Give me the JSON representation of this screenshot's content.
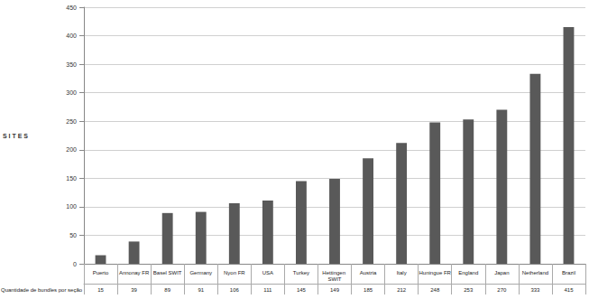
{
  "chart_data": {
    "type": "bar",
    "y_label": "S I T E S",
    "x_label": "Quantidade de bundles por seção",
    "categories": [
      "Puerto",
      "Annonay FR",
      "Basel SWIT",
      "Germany",
      "Nyon FR",
      "USA",
      "Turkey",
      "Hettingen SWIT",
      "Austria",
      "Italy",
      "Huningue FR",
      "England",
      "Japan",
      "Netherland",
      "Brazil"
    ],
    "values": [
      15,
      39,
      89,
      91,
      106,
      111,
      145,
      149,
      185,
      212,
      248,
      253,
      270,
      333,
      415
    ],
    "color": "#595959",
    "ylim": [
      0,
      450
    ],
    "yticks": [
      0,
      50,
      100,
      150,
      200,
      250,
      300,
      350,
      400,
      450
    ],
    "grid": true
  }
}
